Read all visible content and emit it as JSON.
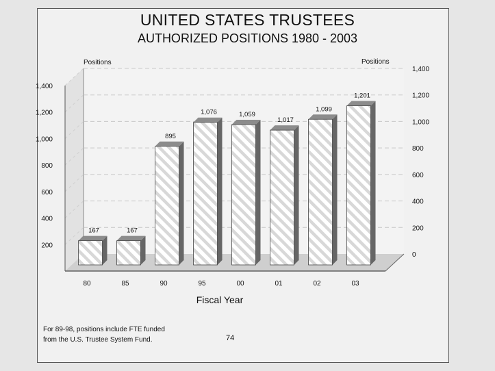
{
  "title": "UNITED STATES TRUSTEES",
  "subtitle": "AUTHORIZED POSITIONS 1980 - 2003",
  "footnote": {
    "line1": "For 89-98, positions include FTE funded",
    "line2": "from the U.S. Trustee System Fund."
  },
  "page_number": "74",
  "colors": {
    "bar_face": "#ffffff",
    "bar_hatch": "#d8d8d8",
    "bar_side": "#666666",
    "bar_top": "#8c8c8c",
    "wall": "#f3f3f3",
    "floor": "#cfcfcf"
  },
  "chart_data": {
    "type": "bar",
    "title": "UNITED STATES TRUSTEES",
    "subtitle": "AUTHORIZED POSITIONS 1980 - 2003",
    "categories": [
      "80",
      "85",
      "90",
      "95",
      "00",
      "01",
      "02",
      "03"
    ],
    "values": [
      167,
      167,
      895,
      1076,
      1059,
      1017,
      1099,
      1201
    ],
    "value_labels": [
      "167",
      "167",
      "895",
      "1,076",
      "1,059",
      "1,017",
      "1,099",
      "1,201"
    ],
    "xlabel": "Fiscal Year",
    "ylabel_left": "Positions",
    "ylabel_right": "Positions",
    "ylim": [
      0,
      1400
    ],
    "left_ticks": [
      "200",
      "400",
      "600",
      "800",
      "1,000",
      "1,200",
      "1,400"
    ],
    "right_ticks": [
      "0",
      "200",
      "400",
      "600",
      "800",
      "1,000",
      "1,200",
      "1,400"
    ],
    "grid": true,
    "style": "3d-hatched"
  }
}
